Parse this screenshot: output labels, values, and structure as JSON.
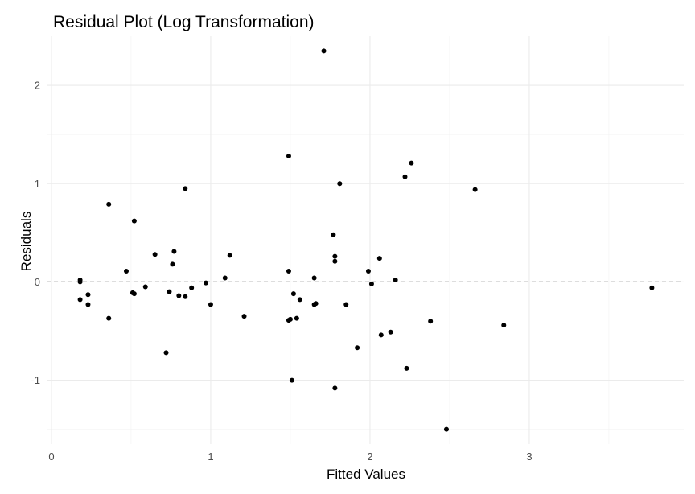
{
  "chart_data": {
    "type": "scatter",
    "title": "Residual Plot (Log Transformation)",
    "xlabel": "Fitted Values",
    "ylabel": "Residuals",
    "xlim": [
      -0.03,
      3.97
    ],
    "ylim": [
      -1.65,
      2.5
    ],
    "x_ticks": [
      0,
      1,
      2,
      3
    ],
    "x_tick_labels": [
      "0",
      "1",
      "2",
      "3"
    ],
    "y_ticks": [
      -1,
      0,
      1,
      2
    ],
    "y_tick_labels": [
      "-1",
      "0",
      "1",
      "2"
    ],
    "grid": true,
    "reference_line": {
      "y": 0,
      "style": "dashed"
    },
    "points": [
      [
        0.18,
        0.02
      ],
      [
        0.18,
        0.0
      ],
      [
        0.18,
        -0.18
      ],
      [
        0.23,
        -0.13
      ],
      [
        0.23,
        -0.23
      ],
      [
        0.36,
        0.79
      ],
      [
        0.36,
        -0.37
      ],
      [
        0.47,
        0.11
      ],
      [
        0.51,
        -0.11
      ],
      [
        0.52,
        -0.12
      ],
      [
        0.52,
        0.62
      ],
      [
        0.59,
        -0.05
      ],
      [
        0.65,
        0.28
      ],
      [
        0.72,
        -0.72
      ],
      [
        0.74,
        -0.1
      ],
      [
        0.76,
        0.18
      ],
      [
        0.77,
        0.31
      ],
      [
        0.8,
        -0.14
      ],
      [
        0.84,
        -0.15
      ],
      [
        0.84,
        0.95
      ],
      [
        0.88,
        -0.06
      ],
      [
        0.97,
        -0.01
      ],
      [
        1.0,
        -0.23
      ],
      [
        1.09,
        0.04
      ],
      [
        1.12,
        0.27
      ],
      [
        1.21,
        -0.35
      ],
      [
        1.49,
        1.28
      ],
      [
        1.49,
        0.11
      ],
      [
        1.49,
        -0.39
      ],
      [
        1.5,
        -0.38
      ],
      [
        1.51,
        -1.0
      ],
      [
        1.52,
        -0.12
      ],
      [
        1.54,
        -0.37
      ],
      [
        1.56,
        -0.18
      ],
      [
        1.65,
        0.04
      ],
      [
        1.65,
        -0.23
      ],
      [
        1.66,
        -0.22
      ],
      [
        1.71,
        2.35
      ],
      [
        1.77,
        0.48
      ],
      [
        1.78,
        0.21
      ],
      [
        1.78,
        0.26
      ],
      [
        1.78,
        -1.08
      ],
      [
        1.81,
        1.0
      ],
      [
        1.85,
        -0.23
      ],
      [
        1.92,
        -0.67
      ],
      [
        1.99,
        0.11
      ],
      [
        2.01,
        -0.02
      ],
      [
        2.06,
        0.24
      ],
      [
        2.07,
        -0.54
      ],
      [
        2.13,
        -0.51
      ],
      [
        2.16,
        0.02
      ],
      [
        2.22,
        1.07
      ],
      [
        2.23,
        -0.88
      ],
      [
        2.26,
        1.21
      ],
      [
        2.38,
        -0.4
      ],
      [
        2.48,
        -1.5
      ],
      [
        2.66,
        0.94
      ],
      [
        2.84,
        -0.44
      ],
      [
        3.77,
        -0.06
      ]
    ]
  }
}
